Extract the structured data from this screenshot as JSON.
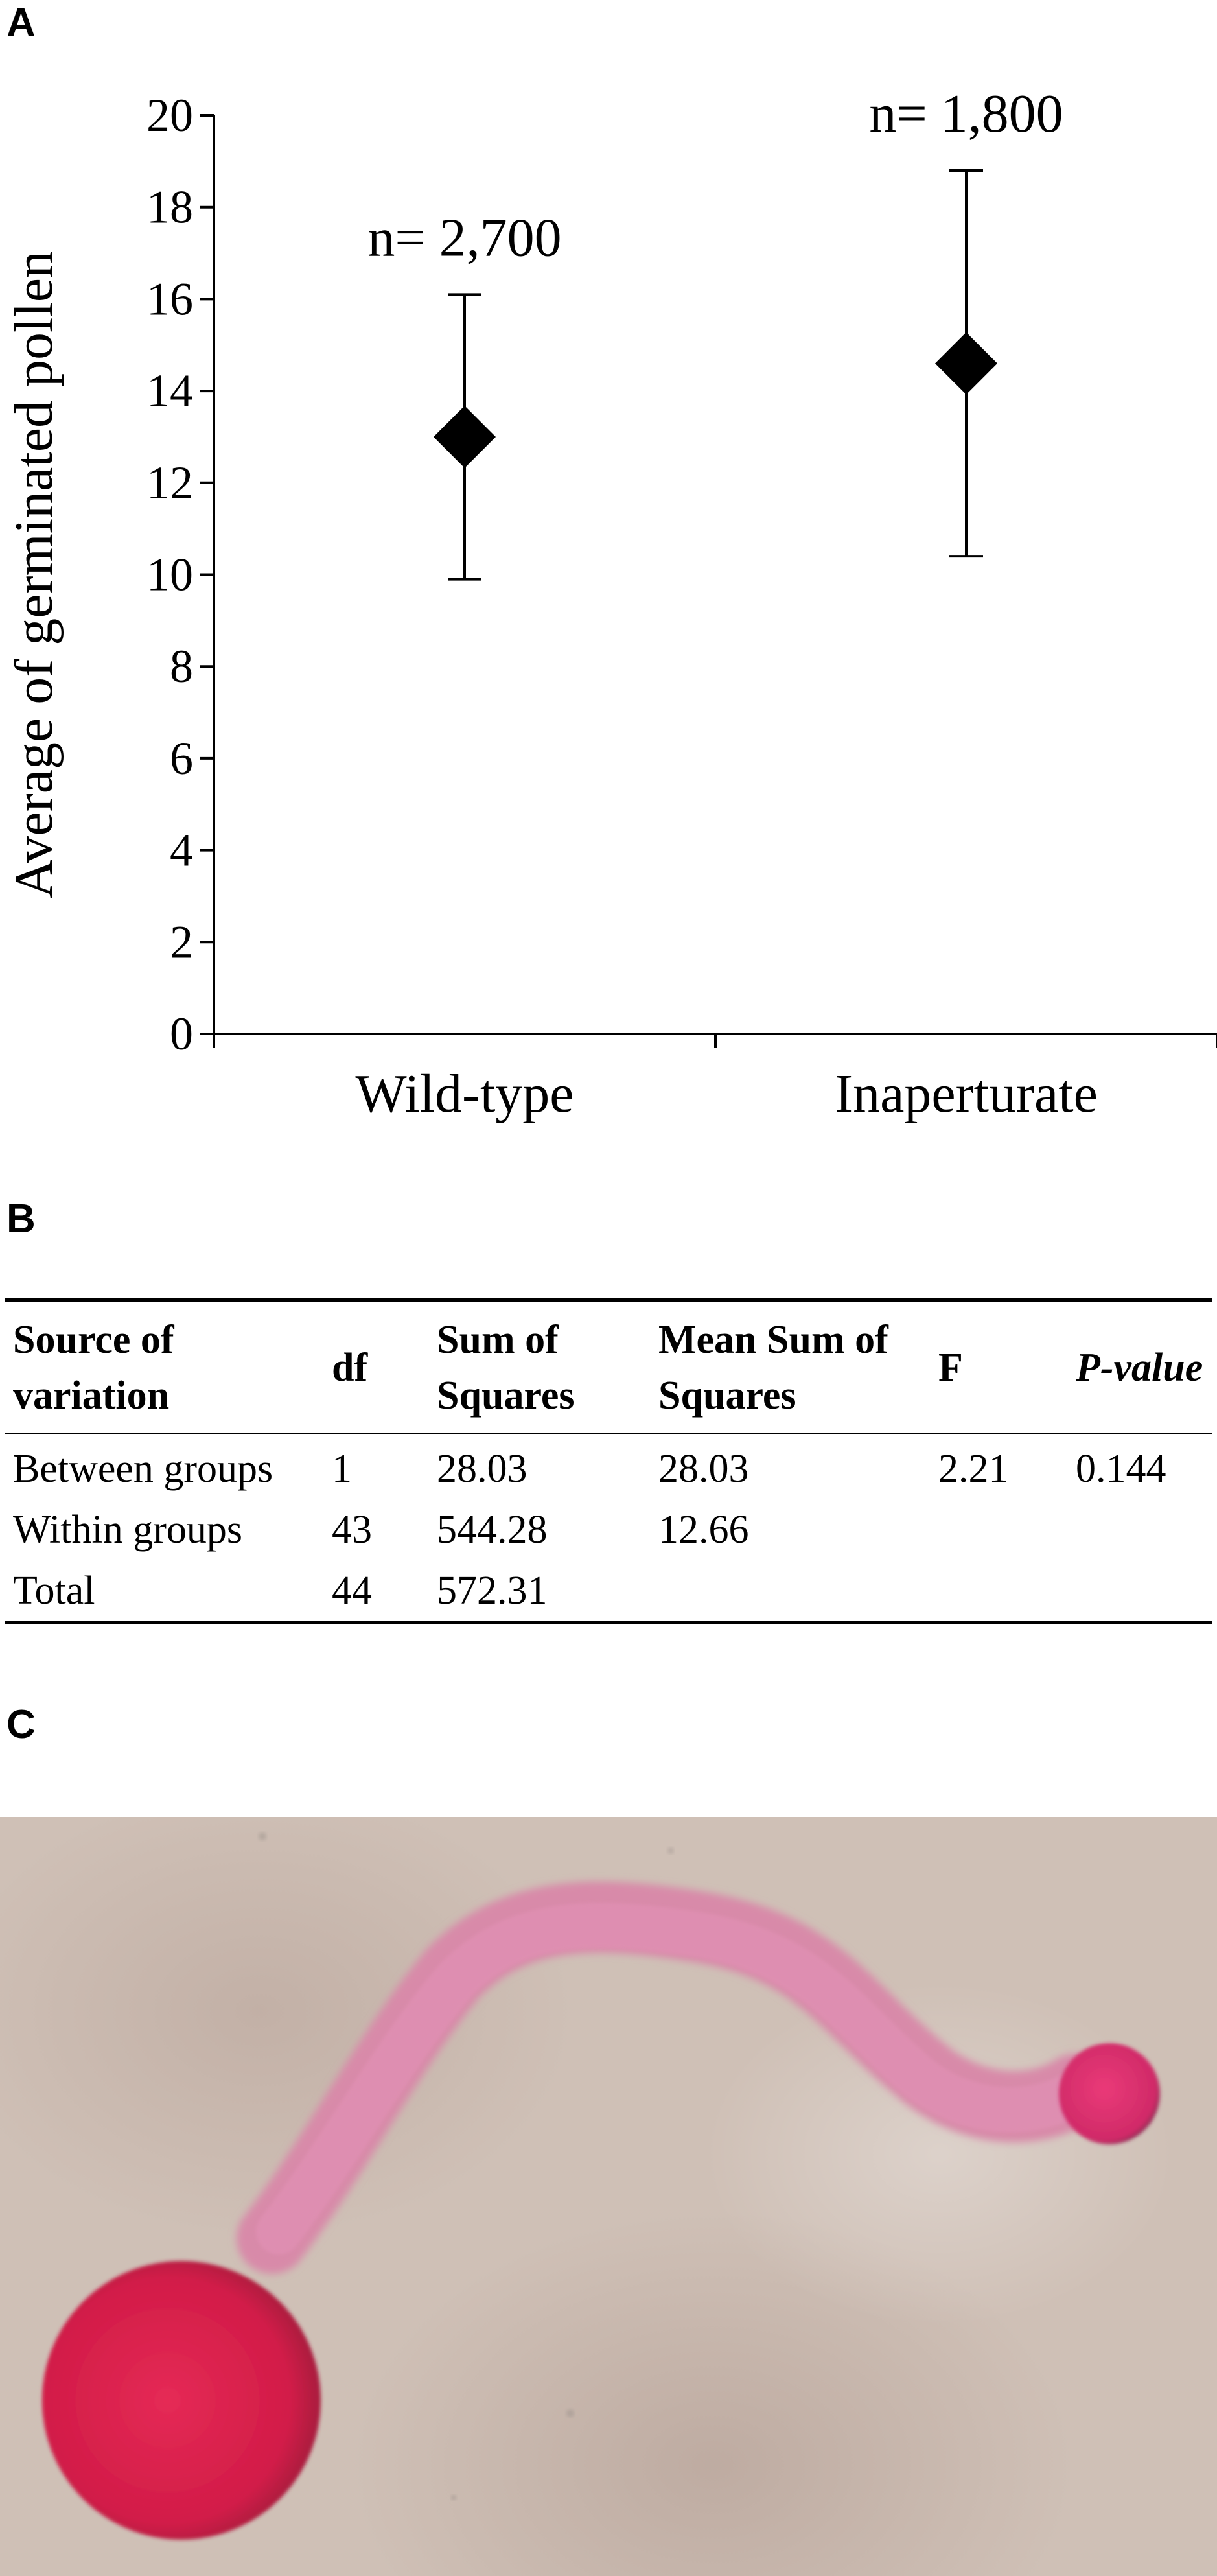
{
  "panels": {
    "a": "A",
    "b": "B",
    "c": "C"
  },
  "chart_data": {
    "type": "scatter",
    "ylabel": "Average of germinated pollen",
    "xlabel": "",
    "ylim": [
      0,
      20
    ],
    "yticks": [
      "0",
      "2",
      "4",
      "6",
      "8",
      "10",
      "12",
      "14",
      "16",
      "18",
      "20"
    ],
    "categories": [
      "Wild-type",
      "Inaperturate"
    ],
    "points": [
      {
        "category": "Wild-type",
        "mean": 13.0,
        "err_low": 9.9,
        "err_high": 16.1,
        "label": "n= 2,700"
      },
      {
        "category": "Inaperturate",
        "mean": 14.6,
        "err_low": 10.4,
        "err_high": 18.8,
        "label": "n= 1,800"
      }
    ],
    "marker": "diamond",
    "marker_color": "#000000",
    "grid": false
  },
  "anova_table": {
    "headers": [
      "Source of variation",
      "df",
      "Sum of Squares",
      "Mean Sum of Squares",
      "F",
      "P-value"
    ],
    "rows": [
      [
        "Between groups",
        "1",
        "28.03",
        "28.03",
        "2.21",
        "0.144"
      ],
      [
        "Within groups",
        "43",
        "544.28",
        "12.66",
        "",
        ""
      ],
      [
        "Total",
        "44",
        "572.31",
        "",
        "",
        ""
      ]
    ]
  },
  "micrograph": {
    "background_color": "#cfc0b6",
    "grain_color": "#d6204e",
    "tube_color": "#d98aaa"
  }
}
